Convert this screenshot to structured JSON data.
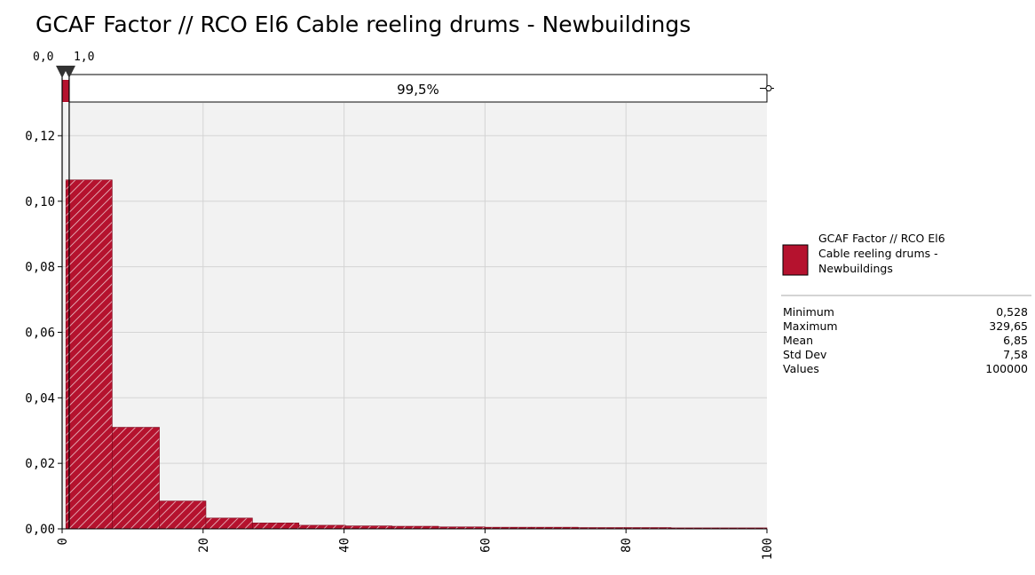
{
  "chart_data": {
    "type": "bar",
    "title": "GCAF Factor // RCO El6 Cable reeling drums - Newbuildings",
    "xlabel": "",
    "ylabel": "",
    "xlim": [
      0,
      100
    ],
    "ylim": [
      0,
      0.13
    ],
    "grid": true,
    "x_ticks": [
      {
        "value": 0,
        "label": "0"
      },
      {
        "value": 20,
        "label": "20"
      },
      {
        "value": 40,
        "label": "40"
      },
      {
        "value": 60,
        "label": "60"
      },
      {
        "value": 80,
        "label": "80"
      },
      {
        "value": 100,
        "label": "100"
      }
    ],
    "y_ticks": [
      {
        "value": 0.0,
        "label": "0,00"
      },
      {
        "value": 0.02,
        "label": "0,02"
      },
      {
        "value": 0.04,
        "label": "0,04"
      },
      {
        "value": 0.06,
        "label": "0,06"
      },
      {
        "value": 0.08,
        "label": "0,08"
      },
      {
        "value": 0.1,
        "label": "0,10"
      },
      {
        "value": 0.12,
        "label": "0,12"
      }
    ],
    "bins": [
      {
        "x0": 0.528,
        "x1": 7.1,
        "value": 0.1065
      },
      {
        "x0": 7.1,
        "x1": 13.8,
        "value": 0.031
      },
      {
        "x0": 13.8,
        "x1": 20.4,
        "value": 0.0085
      },
      {
        "x0": 20.4,
        "x1": 27.0,
        "value": 0.0033
      },
      {
        "x0": 27.0,
        "x1": 33.6,
        "value": 0.0018
      },
      {
        "x0": 33.6,
        "x1": 40.2,
        "value": 0.0011
      },
      {
        "x0": 40.2,
        "x1": 46.8,
        "value": 0.0009
      },
      {
        "x0": 46.8,
        "x1": 53.4,
        "value": 0.0008
      },
      {
        "x0": 53.4,
        "x1": 60.0,
        "value": 0.0006
      },
      {
        "x0": 60.0,
        "x1": 66.6,
        "value": 0.0005
      },
      {
        "x0": 66.6,
        "x1": 73.2,
        "value": 0.0005
      },
      {
        "x0": 73.2,
        "x1": 79.8,
        "value": 0.0004
      },
      {
        "x0": 79.8,
        "x1": 86.4,
        "value": 0.0004
      },
      {
        "x0": 86.4,
        "x1": 93.0,
        "value": 0.0003
      },
      {
        "x0": 93.0,
        "x1": 100,
        "value": 0.0003
      }
    ],
    "delimiters": {
      "left_value": 0.0,
      "right_value": 1.0,
      "left_label": "0,0",
      "right_label": "1,0",
      "band_label": "99,5%"
    },
    "legend": {
      "placement": "right",
      "series_name": "GCAF Factor // RCO El6 Cable reeling drums - Newbuildings",
      "name_lines": [
        "GCAF Factor // RCO El6",
        "Cable reeling drums -",
        "Newbuildings"
      ],
      "stats": [
        {
          "label": "Minimum",
          "value": "0,528"
        },
        {
          "label": "Maximum",
          "value": "329,65"
        },
        {
          "label": "Mean",
          "value": "6,85"
        },
        {
          "label": "Std Dev",
          "value": "7,58"
        },
        {
          "label": "Values",
          "value": "100000"
        }
      ]
    },
    "colors": {
      "bar_fill": "#b5122e",
      "bar_edge": "#7a0a1e",
      "plot_bg": "#f2f2f2",
      "grid": "#d4d4d4",
      "axis": "#000000",
      "marker": "#333333"
    }
  }
}
